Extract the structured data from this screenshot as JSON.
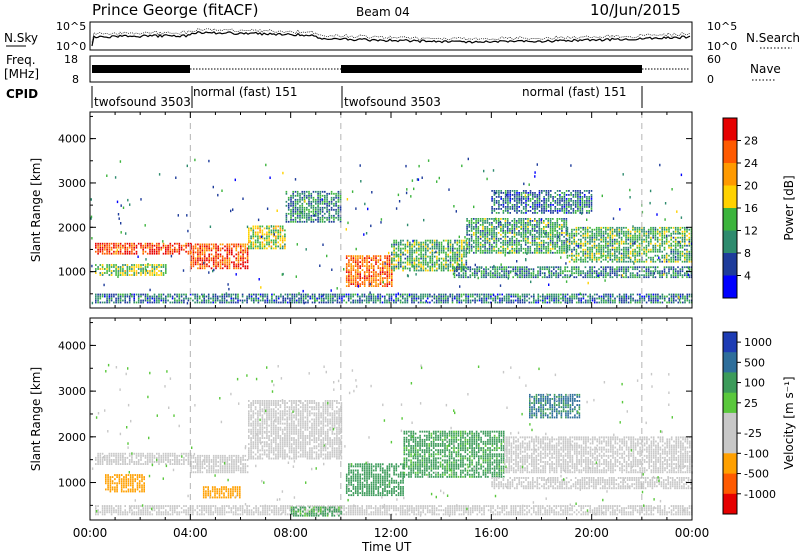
{
  "header": {
    "station": "Prince George (fitACF)",
    "beam": "Beam 04",
    "date": "10/Jun/2015"
  },
  "top_panels": {
    "nsky_label": "N.Sky",
    "nsky_ticks": [
      "10^5",
      "10^0"
    ],
    "nsearch_label": "N.Search",
    "nsearch_ticks": [
      "10^5",
      "10^0"
    ],
    "freq_label_line1": "Freq.",
    "freq_label_line2": "[MHz]",
    "freq_ticks": [
      "18",
      "8"
    ],
    "nave_label": "Nave",
    "nave_ticks": [
      "60",
      "0"
    ],
    "cpid_label": "CPID",
    "cpid_segments": [
      {
        "label": "twofsound 3503",
        "start_hr": 0.0,
        "end_hr": 4.0
      },
      {
        "label": "normal (fast) 151",
        "start_hr": 4.0,
        "end_hr": 10.0
      },
      {
        "label": "twofsound 3503",
        "start_hr": 10.0,
        "end_hr": 22.0
      },
      {
        "label": "normal (fast) 151",
        "start_hr": 22.0,
        "end_hr": 24.0
      }
    ]
  },
  "chart_data": [
    {
      "type": "heatmap",
      "title": "",
      "xlabel": "Time UT",
      "ylabel": "Slant Range [km]",
      "xlim": [
        0,
        24
      ],
      "ylim": [
        180,
        4600
      ],
      "x_ticks": [
        "00:00",
        "04:00",
        "08:00",
        "12:00",
        "16:00",
        "20:00",
        "00:00"
      ],
      "y_ticks": [
        1000,
        2000,
        3000,
        4000
      ],
      "colorbar": {
        "label": "Power [dB]",
        "ticks": [
          "28",
          "24",
          "20",
          "16",
          "12",
          "8",
          "4"
        ],
        "range": [
          0,
          30
        ],
        "colors": [
          "#e60000",
          "#ff5a00",
          "#ff9a00",
          "#ffd200",
          "#3cb43c",
          "#2e8b6e",
          "#1e3c9b",
          "#0000ff"
        ]
      },
      "bands": [
        {
          "t0": 0.2,
          "t1": 4.0,
          "r0": 1380,
          "r1": 1650,
          "value": 26
        },
        {
          "t0": 4.0,
          "t1": 6.3,
          "r0": 1050,
          "r1": 1600,
          "value": 25
        },
        {
          "t0": 6.3,
          "t1": 7.8,
          "r0": 1500,
          "r1": 2000,
          "value": 15
        },
        {
          "t0": 7.8,
          "t1": 10.0,
          "r0": 2100,
          "r1": 2800,
          "value": 9
        },
        {
          "t0": 0.2,
          "t1": 3.0,
          "r0": 900,
          "r1": 1150,
          "value": 14
        },
        {
          "t0": 10.2,
          "t1": 12.0,
          "r0": 650,
          "r1": 1350,
          "value": 24
        },
        {
          "t0": 12.0,
          "t1": 15.0,
          "r0": 1000,
          "r1": 1700,
          "value": 12
        },
        {
          "t0": 15.0,
          "t1": 19.0,
          "r0": 1400,
          "r1": 2200,
          "value": 11
        },
        {
          "t0": 19.0,
          "t1": 24.0,
          "r0": 1200,
          "r1": 2000,
          "value": 12
        },
        {
          "t0": 14.5,
          "t1": 24.0,
          "r0": 850,
          "r1": 1100,
          "value": 9
        },
        {
          "t0": 0.2,
          "t1": 24.0,
          "r0": 280,
          "r1": 500,
          "value": 8
        },
        {
          "t0": 16.0,
          "t1": 20.0,
          "r0": 2300,
          "r1": 2800,
          "value": 8
        }
      ]
    },
    {
      "type": "heatmap",
      "title": "",
      "xlabel": "Time UT",
      "ylabel": "Slant Range [km]",
      "xlim": [
        0,
        24
      ],
      "ylim": [
        180,
        4600
      ],
      "x_ticks": [
        "00:00",
        "04:00",
        "08:00",
        "12:00",
        "16:00",
        "20:00",
        "00:00"
      ],
      "y_ticks": [
        1000,
        2000,
        3000,
        4000
      ],
      "colorbar": {
        "label": "Velocity [m s⁻¹]",
        "ticks": [
          "1000",
          "500",
          "100",
          "25",
          "-25",
          "-100",
          "-500",
          "-1000"
        ],
        "range": [
          -1000,
          1000
        ],
        "colors": [
          "#1e3cb4",
          "#2e6e9b",
          "#3c9b5a",
          "#5ac83c",
          "#c8c8c8",
          "#c8c8c8",
          "#ffa000",
          "#ff5a00",
          "#e60000"
        ]
      },
      "bands": [
        {
          "t0": 0.2,
          "t1": 4.0,
          "r0": 1380,
          "r1": 1650,
          "value": 0
        },
        {
          "t0": 4.0,
          "t1": 6.3,
          "r0": 1200,
          "r1": 1600,
          "value": 0
        },
        {
          "t0": 6.3,
          "t1": 10.0,
          "r0": 1500,
          "r1": 2800,
          "value": 5
        },
        {
          "t0": 0.6,
          "t1": 2.2,
          "r0": 780,
          "r1": 1150,
          "value": -300
        },
        {
          "t0": 4.5,
          "t1": 6.0,
          "r0": 650,
          "r1": 900,
          "value": -300
        },
        {
          "t0": 10.2,
          "t1": 12.5,
          "r0": 700,
          "r1": 1400,
          "value": 200
        },
        {
          "t0": 12.5,
          "t1": 16.5,
          "r0": 1100,
          "r1": 2100,
          "value": 150
        },
        {
          "t0": 16.5,
          "t1": 24.0,
          "r0": 1200,
          "r1": 2000,
          "value": 0
        },
        {
          "t0": 16.0,
          "t1": 24.0,
          "r0": 850,
          "r1": 1100,
          "value": 0
        },
        {
          "t0": 0.2,
          "t1": 24.0,
          "r0": 280,
          "r1": 500,
          "value": 0
        },
        {
          "t0": 8.0,
          "t1": 10.0,
          "r0": 250,
          "r1": 450,
          "value": 120
        },
        {
          "t0": 17.5,
          "t1": 19.5,
          "r0": 2400,
          "r1": 2900,
          "value": 600
        }
      ]
    }
  ]
}
